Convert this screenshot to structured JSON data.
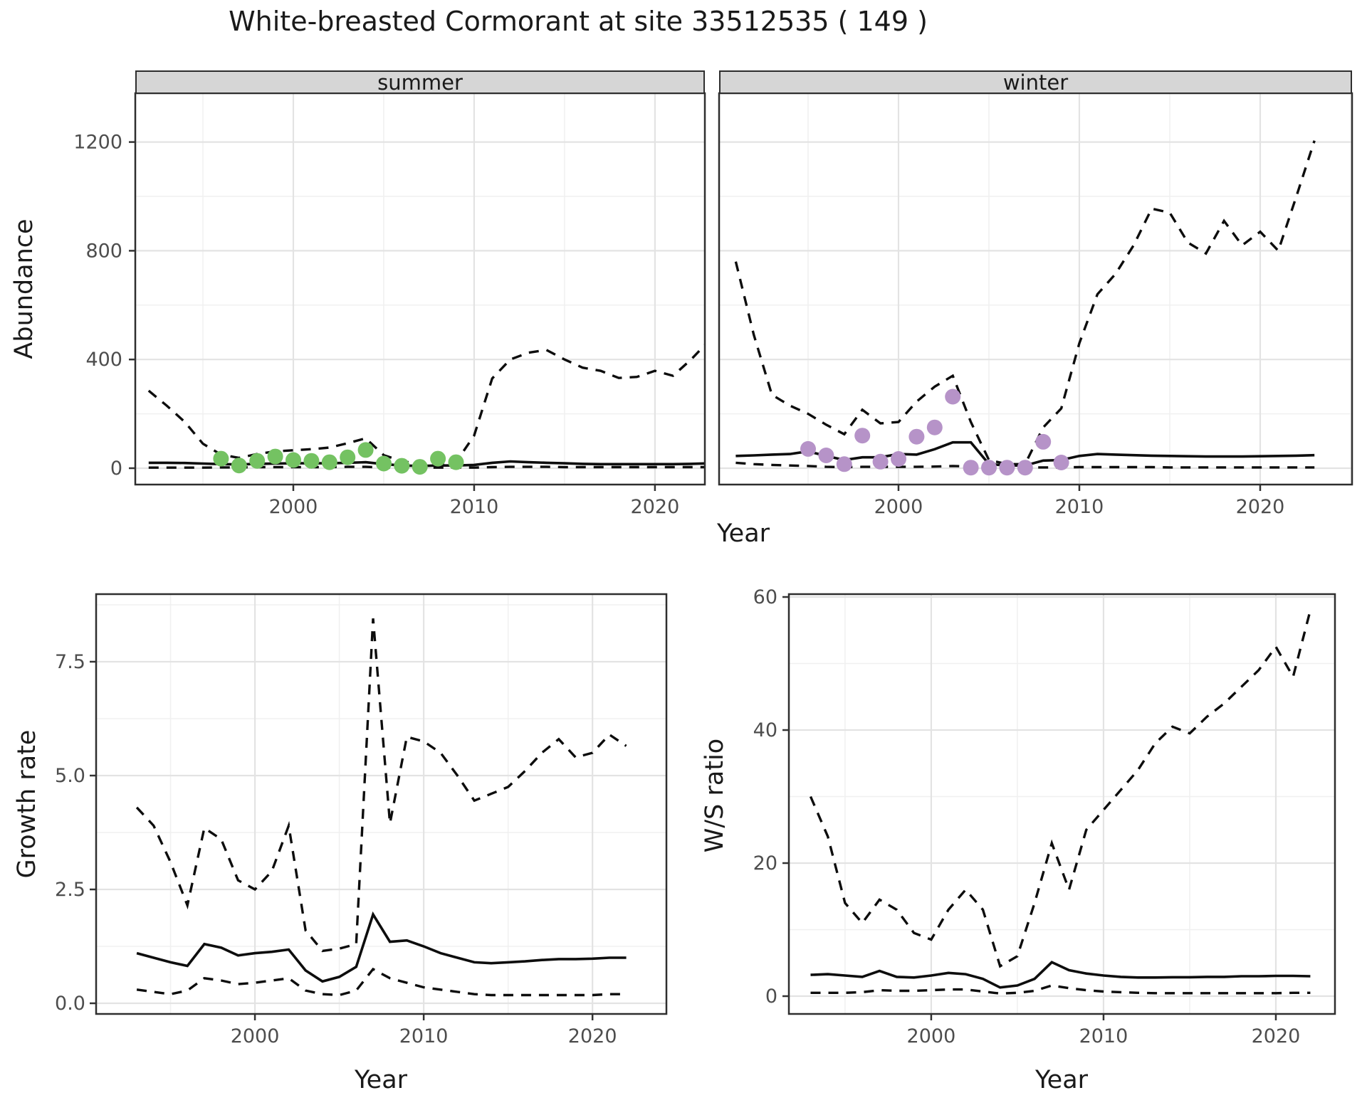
{
  "title": "White-breasted Cormorant at site 33512535 ( 149 )",
  "colors": {
    "summer_points": "#74c262",
    "winter_points": "#b693c8",
    "line": "#0d0d0d",
    "grid_major": "#e3e3e3",
    "grid_minor": "#f0f0f0",
    "panel_border": "#2e2e2e",
    "strip_bg": "#d6d6d6",
    "tick_text": "#4d4d4d"
  },
  "chart_data": [
    {
      "id": "summer",
      "type": "line",
      "facet_label": "summer",
      "xlabel": "Year",
      "ylabel": "Abundance",
      "xlim": [
        1991.26,
        2022.76
      ],
      "ylim": [
        -60.2,
        1379.6
      ],
      "xticks": [
        {
          "v": 2000,
          "label": "2000"
        },
        {
          "v": 2010,
          "label": "2010"
        },
        {
          "v": 2020,
          "label": "2020"
        }
      ],
      "xminor": [
        1995,
        2005,
        2015
      ],
      "yticks": [
        {
          "v": 0,
          "label": "0"
        },
        {
          "v": 400,
          "label": "400"
        },
        {
          "v": 800,
          "label": "800"
        },
        {
          "v": 1200,
          "label": "1200"
        }
      ],
      "yminor": [
        200,
        600,
        1000
      ],
      "x": [
        1992,
        1993,
        1994,
        1995,
        1996,
        1997,
        1998,
        1999,
        2000,
        2001,
        2002,
        2003,
        2004,
        2005,
        2006,
        2007,
        2008,
        2009,
        2010,
        2011,
        2012,
        2013,
        2014,
        2015,
        2016,
        2017,
        2018,
        2019,
        2020,
        2021,
        2022,
        2023
      ],
      "series": [
        {
          "name": "upper_ci",
          "style": "dashed",
          "values": [
            285,
            230,
            170,
            90,
            50,
            38,
            52,
            62,
            66,
            70,
            76,
            92,
            110,
            48,
            26,
            16,
            16,
            22,
            120,
            330,
            400,
            425,
            435,
            400,
            370,
            358,
            332,
            336,
            358,
            340,
            400,
            470
          ]
        },
        {
          "name": "median",
          "style": "solid",
          "values": [
            20,
            20,
            19,
            17,
            15,
            14,
            16,
            17,
            18,
            18,
            18,
            20,
            22,
            15,
            10,
            8,
            10,
            10,
            12,
            20,
            25,
            22,
            20,
            18,
            16,
            15,
            15,
            15,
            15,
            15,
            16,
            18
          ]
        },
        {
          "name": "lower_ci",
          "style": "dashed",
          "values": [
            2,
            2,
            2,
            2,
            3,
            3,
            4,
            4,
            4,
            4,
            4,
            5,
            5,
            3,
            2,
            2,
            2,
            2,
            2,
            4,
            5,
            5,
            5,
            4,
            4,
            4,
            4,
            4,
            4,
            4,
            4,
            4
          ]
        }
      ],
      "points": {
        "name": "observed counts",
        "color": "#74c262",
        "data": [
          [
            1996,
            35
          ],
          [
            1997,
            10
          ],
          [
            1998,
            27
          ],
          [
            1999,
            43
          ],
          [
            2000,
            30
          ],
          [
            2001,
            27
          ],
          [
            2002,
            22
          ],
          [
            2003,
            40
          ],
          [
            2004,
            67
          ],
          [
            2005,
            17
          ],
          [
            2006,
            9
          ],
          [
            2007,
            5
          ],
          [
            2008,
            35
          ],
          [
            2009,
            22
          ]
        ]
      }
    },
    {
      "id": "winter",
      "type": "line",
      "facet_label": "winter",
      "xlabel": "Year",
      "ylabel": "Abundance",
      "xlim": [
        1990.08,
        2025.08
      ],
      "ylim": [
        -60.2,
        1379.6
      ],
      "xticks": [
        {
          "v": 2000,
          "label": "2000"
        },
        {
          "v": 2010,
          "label": "2010"
        },
        {
          "v": 2020,
          "label": "2020"
        }
      ],
      "xminor": [
        1995,
        2005,
        2015,
        2025
      ],
      "yticks": [
        {
          "v": 0,
          "label": ""
        },
        {
          "v": 400,
          "label": ""
        },
        {
          "v": 800,
          "label": ""
        },
        {
          "v": 1200,
          "label": ""
        }
      ],
      "yminor": [
        200,
        600,
        1000
      ],
      "x": [
        1991,
        1992,
        1993,
        1994,
        1995,
        1996,
        1997,
        1998,
        1999,
        2000,
        2001,
        2002,
        2003,
        2004,
        2005,
        2006,
        2007,
        2008,
        2009,
        2010,
        2011,
        2012,
        2013,
        2014,
        2015,
        2016,
        2017,
        2018,
        2019,
        2020,
        2021,
        2022,
        2023
      ],
      "series": [
        {
          "name": "upper_ci",
          "style": "dashed",
          "values": [
            760,
            490,
            270,
            230,
            200,
            160,
            125,
            215,
            165,
            170,
            245,
            300,
            340,
            170,
            30,
            15,
            15,
            150,
            220,
            460,
            640,
            715,
            820,
            955,
            940,
            830,
            790,
            910,
            820,
            870,
            800,
            1000,
            1205
          ]
        },
        {
          "name": "median",
          "style": "solid",
          "values": [
            45,
            47,
            50,
            52,
            62,
            45,
            30,
            40,
            40,
            52,
            50,
            70,
            95,
            95,
            15,
            10,
            10,
            28,
            30,
            45,
            52,
            50,
            48,
            46,
            45,
            44,
            43,
            43,
            43,
            44,
            45,
            46,
            48
          ]
        },
        {
          "name": "lower_ci",
          "style": "dashed",
          "values": [
            20,
            15,
            12,
            10,
            8,
            5,
            4,
            5,
            5,
            5,
            5,
            6,
            8,
            6,
            2,
            2,
            2,
            3,
            3,
            4,
            4,
            4,
            4,
            4,
            3,
            3,
            3,
            3,
            3,
            3,
            3,
            3,
            3
          ]
        }
      ],
      "points": {
        "name": "observed counts",
        "color": "#b693c8",
        "data": [
          [
            1995,
            71
          ],
          [
            1996,
            47
          ],
          [
            1997,
            15
          ],
          [
            1998,
            120
          ],
          [
            1999,
            24
          ],
          [
            2000,
            34
          ],
          [
            2001,
            116
          ],
          [
            2002,
            150
          ],
          [
            2003,
            263
          ],
          [
            2004,
            2
          ],
          [
            2005,
            2
          ],
          [
            2006,
            2
          ],
          [
            2007,
            2
          ],
          [
            2008,
            97
          ],
          [
            2009,
            21
          ]
        ]
      }
    },
    {
      "id": "growth",
      "type": "line",
      "facet_label": "",
      "xlabel": "Year",
      "ylabel": "Growth rate",
      "xlim": [
        1990.59,
        2024.38
      ],
      "ylim": [
        -0.234,
        8.984
      ],
      "xticks": [
        {
          "v": 2000,
          "label": "2000"
        },
        {
          "v": 2010,
          "label": "2010"
        },
        {
          "v": 2020,
          "label": "2020"
        }
      ],
      "xminor": [
        1995,
        2005,
        2015
      ],
      "yticks": [
        {
          "v": 0,
          "label": "0.0"
        },
        {
          "v": 2.5,
          "label": "2.5"
        },
        {
          "v": 5,
          "label": "5.0"
        },
        {
          "v": 7.5,
          "label": "7.5"
        }
      ],
      "yminor": [
        1.25,
        3.75,
        6.25,
        8.75
      ],
      "x": [
        1993,
        1994,
        1995,
        1996,
        1997,
        1998,
        1999,
        2000,
        2001,
        2002,
        2003,
        2004,
        2005,
        2006,
        2007,
        2008,
        2009,
        2010,
        2011,
        2012,
        2013,
        2014,
        2015,
        2016,
        2017,
        2018,
        2019,
        2020,
        2021,
        2022
      ],
      "series": [
        {
          "name": "upper_ci",
          "style": "dashed",
          "values": [
            4.3,
            3.9,
            3.1,
            2.15,
            3.85,
            3.6,
            2.7,
            2.5,
            2.9,
            3.9,
            1.6,
            1.15,
            1.2,
            1.3,
            8.45,
            3.95,
            5.85,
            5.75,
            5.5,
            5.0,
            4.45,
            4.6,
            4.75,
            5.1,
            5.5,
            5.8,
            5.4,
            5.5,
            5.9,
            5.65
          ]
        },
        {
          "name": "median",
          "style": "solid",
          "values": [
            1.1,
            1.0,
            0.9,
            0.82,
            1.3,
            1.22,
            1.05,
            1.1,
            1.13,
            1.18,
            0.72,
            0.48,
            0.58,
            0.8,
            1.95,
            1.35,
            1.38,
            1.25,
            1.1,
            1.0,
            0.9,
            0.88,
            0.9,
            0.92,
            0.95,
            0.97,
            0.97,
            0.98,
            1.0,
            1.0
          ]
        },
        {
          "name": "lower_ci",
          "style": "dashed",
          "values": [
            0.3,
            0.25,
            0.2,
            0.28,
            0.55,
            0.5,
            0.42,
            0.45,
            0.5,
            0.55,
            0.28,
            0.2,
            0.18,
            0.28,
            0.75,
            0.55,
            0.45,
            0.35,
            0.3,
            0.25,
            0.2,
            0.18,
            0.18,
            0.18,
            0.18,
            0.18,
            0.18,
            0.18,
            0.2,
            0.2
          ]
        }
      ],
      "points": null
    },
    {
      "id": "ws-ratio",
      "type": "line",
      "facet_label": "",
      "xlabel": "Year",
      "ylabel": "W/S ratio",
      "xlim": [
        1991.74,
        2023.43
      ],
      "ylim": [
        -2.674,
        60.43
      ],
      "xticks": [
        {
          "v": 2000,
          "label": "2000"
        },
        {
          "v": 2010,
          "label": "2010"
        },
        {
          "v": 2020,
          "label": "2020"
        }
      ],
      "xminor": [
        1995,
        2005,
        2015
      ],
      "yticks": [
        {
          "v": 0,
          "label": "0"
        },
        {
          "v": 20,
          "label": "20"
        },
        {
          "v": 40,
          "label": "40"
        },
        {
          "v": 60,
          "label": "60"
        }
      ],
      "yminor": [
        10,
        30,
        50
      ],
      "x": [
        1993,
        1994,
        1995,
        1996,
        1997,
        1998,
        1999,
        2000,
        2001,
        2002,
        2003,
        2004,
        2005,
        2006,
        2007,
        2008,
        2009,
        2010,
        2011,
        2012,
        2013,
        2014,
        2015,
        2016,
        2017,
        2018,
        2019,
        2020,
        2021,
        2022
      ],
      "series": [
        {
          "name": "upper_ci",
          "style": "dashed",
          "values": [
            30,
            24,
            14,
            11,
            14.5,
            13,
            9.5,
            8.5,
            13,
            16,
            13,
            4.5,
            6,
            14,
            23,
            16,
            25,
            28,
            31,
            34,
            38,
            40.5,
            39.5,
            42,
            44,
            46.5,
            49,
            52.5,
            48,
            58
          ]
        },
        {
          "name": "median",
          "style": "solid",
          "values": [
            3.2,
            3.3,
            3.1,
            2.9,
            3.8,
            2.9,
            2.8,
            3.1,
            3.5,
            3.3,
            2.6,
            1.3,
            1.6,
            2.6,
            5.1,
            3.9,
            3.4,
            3.1,
            2.9,
            2.8,
            2.8,
            2.85,
            2.85,
            2.9,
            2.9,
            3.0,
            3.0,
            3.05,
            3.05,
            3.0
          ]
        },
        {
          "name": "lower_ci",
          "style": "dashed",
          "values": [
            0.5,
            0.5,
            0.5,
            0.6,
            0.9,
            0.8,
            0.8,
            0.9,
            1.0,
            1.0,
            0.7,
            0.4,
            0.5,
            0.8,
            1.6,
            1.2,
            0.9,
            0.7,
            0.6,
            0.5,
            0.45,
            0.45,
            0.45,
            0.45,
            0.45,
            0.45,
            0.45,
            0.45,
            0.5,
            0.5
          ]
        }
      ],
      "points": null
    }
  ]
}
